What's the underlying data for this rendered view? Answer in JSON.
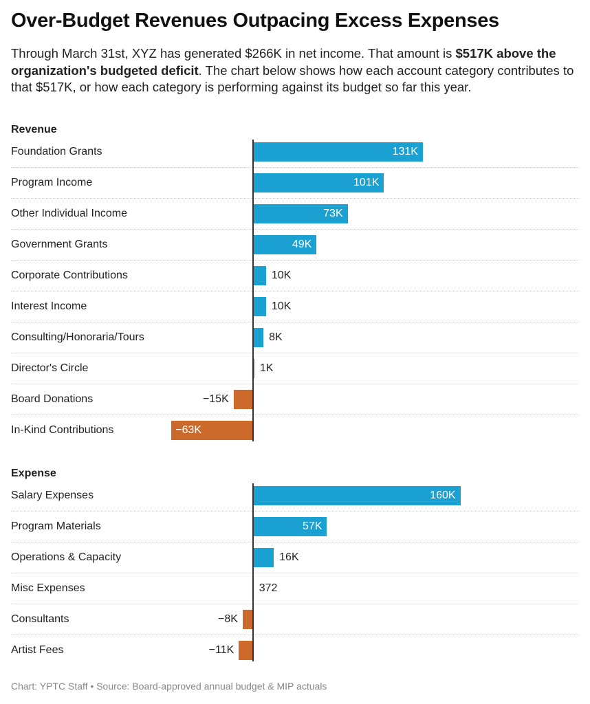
{
  "title": "Over-Budget Revenues Outpacing Excess Expenses",
  "description": {
    "part1": "Through March 31st, XYZ has generated $266K in net income. That amount is ",
    "bold": "$517K above the organization's budgeted deficit",
    "part2": ". The chart below shows how each account category contributes to that $517K, or how each category is performing against its budget so far this year."
  },
  "footer": "Chart: YPTC Staff • Source: Board-approved annual budget & MIP actuals",
  "colors": {
    "positive": "#1ba1d1",
    "negative": "#cc6a2c"
  },
  "chart_data": {
    "type": "bar",
    "orientation": "horizontal",
    "unit": "USD",
    "groups": [
      {
        "name": "Revenue",
        "categories": [
          "Foundation Grants",
          "Program Income",
          "Other Individual Income",
          "Government Grants",
          "Corporate Contributions",
          "Interest Income",
          "Consulting/Honoraria/Tours",
          "Director's Circle",
          "Board Donations",
          "In-Kind Contributions"
        ],
        "values": [
          131000,
          101000,
          73000,
          49000,
          10000,
          10000,
          8000,
          1000,
          -15000,
          -63000
        ],
        "labels": [
          "131K",
          "101K",
          "73K",
          "49K",
          "10K",
          "10K",
          "8K",
          "1K",
          "−15K",
          "−63K"
        ]
      },
      {
        "name": "Expense",
        "categories": [
          "Salary Expenses",
          "Program Materials",
          "Operations & Capacity",
          "Misc Expenses",
          "Consultants",
          "Artist Fees"
        ],
        "values": [
          160000,
          57000,
          16000,
          372,
          -8000,
          -11000
        ],
        "labels": [
          "160K",
          "57K",
          "16K",
          "372",
          "−8K",
          "−11K"
        ]
      }
    ]
  }
}
